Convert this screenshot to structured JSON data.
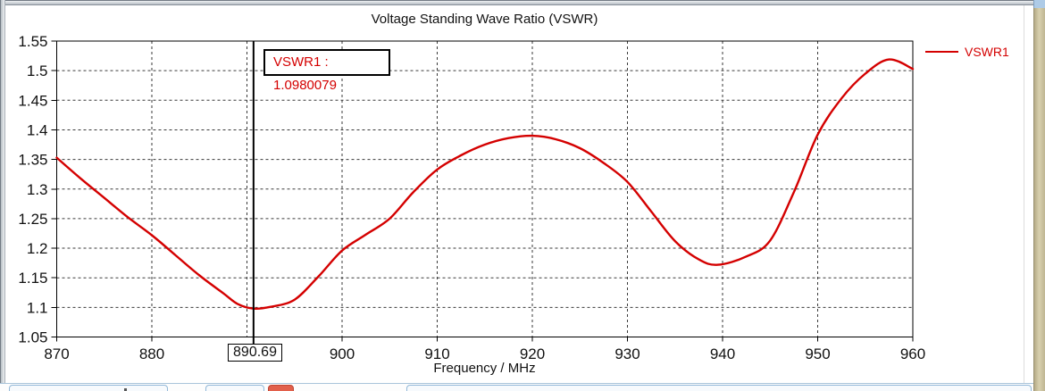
{
  "window_title": "",
  "colors": {
    "series_red": "#d40000",
    "marker_text": "#d40000",
    "axis_black": "#000000"
  },
  "chart_data": {
    "type": "line",
    "title": "Voltage Standing Wave Ratio (VSWR)",
    "xlabel": "Frequency / MHz",
    "ylabel": "",
    "grid": true,
    "x_axis": {
      "min": 870,
      "max": 960,
      "grid_ticks": [
        880,
        890,
        900,
        910,
        920,
        930,
        940,
        950
      ],
      "labeled_ticks": [
        870,
        880,
        900,
        910,
        920,
        930,
        940,
        950,
        960
      ]
    },
    "y_axis": {
      "min": 1.05,
      "max": 1.55,
      "grid_ticks": [
        1.1,
        1.15,
        1.2,
        1.25,
        1.3,
        1.35,
        1.4,
        1.45,
        1.5
      ],
      "labeled_ticks": [
        1.05,
        1.1,
        1.15,
        1.2,
        1.25,
        1.3,
        1.35,
        1.4,
        1.45,
        1.5,
        1.55
      ]
    },
    "legend": {
      "position": "right",
      "entries": [
        {
          "label": "VSWR1",
          "color": "#d40000"
        }
      ]
    },
    "series": [
      {
        "name": "VSWR1",
        "color": "#d40000",
        "x": [
          870,
          872.5,
          875,
          877.5,
          880,
          882.5,
          885,
          887.5,
          889,
          890.69,
          892.5,
          895,
          897.5,
          900,
          902.5,
          905,
          907.5,
          910,
          912.5,
          915,
          917.5,
          920,
          922.5,
          925,
          927.5,
          930,
          932.5,
          935,
          937.5,
          939.5,
          942.5,
          945,
          947.5,
          950,
          952.5,
          955,
          957.5,
          960
        ],
        "y": [
          1.353,
          1.318,
          1.285,
          1.252,
          1.222,
          1.188,
          1.154,
          1.124,
          1.106,
          1.098,
          1.101,
          1.113,
          1.152,
          1.196,
          1.223,
          1.25,
          1.295,
          1.333,
          1.357,
          1.375,
          1.386,
          1.39,
          1.384,
          1.369,
          1.344,
          1.312,
          1.262,
          1.212,
          1.181,
          1.172,
          1.186,
          1.213,
          1.295,
          1.392,
          1.453,
          1.495,
          1.519,
          1.503
        ]
      }
    ],
    "marker": {
      "x": 890.69,
      "x_label": "890.69",
      "value": 1.0980079,
      "label": "VSWR1 : 1.0980079"
    }
  }
}
